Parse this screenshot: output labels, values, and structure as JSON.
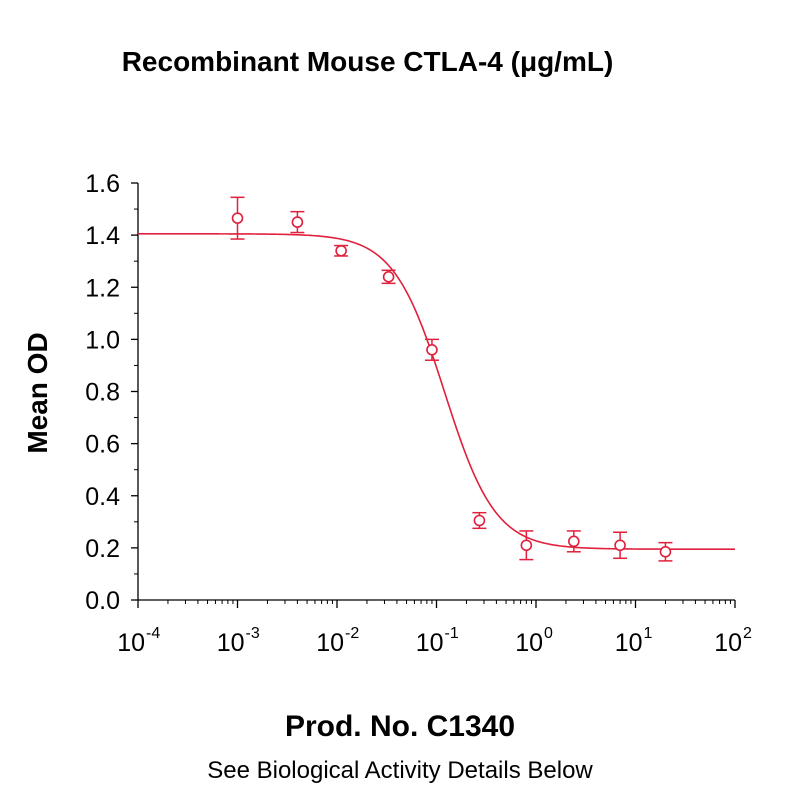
{
  "chart_data": {
    "type": "scatter",
    "title": "Recombinant Mouse CTLA-4 (μg/mL)",
    "xlabel": "",
    "ylabel": "Mean OD",
    "x_scale": "log10",
    "xlim": [
      0.0001,
      100
    ],
    "ylim": [
      0.0,
      1.6
    ],
    "x_tick_labels": [
      {
        "base": "10",
        "exp": "-4"
      },
      {
        "base": "10",
        "exp": "-3"
      },
      {
        "base": "10",
        "exp": "-2"
      },
      {
        "base": "10",
        "exp": "-1"
      },
      {
        "base": "10",
        "exp": "0"
      },
      {
        "base": "10",
        "exp": "1"
      },
      {
        "base": "10",
        "exp": "2"
      }
    ],
    "y_tick_labels": [
      "0.0",
      "0.2",
      "0.4",
      "0.6",
      "0.8",
      "1.0",
      "1.2",
      "1.4",
      "1.6"
    ],
    "grid": false,
    "color": "#e0203c",
    "points": [
      {
        "x": 0.001,
        "y": 1.465,
        "err": 0.08
      },
      {
        "x": 0.004,
        "y": 1.45,
        "err": 0.04
      },
      {
        "x": 0.011,
        "y": 1.34,
        "err": 0.02
      },
      {
        "x": 0.033,
        "y": 1.24,
        "err": 0.025
      },
      {
        "x": 0.09,
        "y": 0.96,
        "err": 0.04
      },
      {
        "x": 0.27,
        "y": 0.305,
        "err": 0.03
      },
      {
        "x": 0.8,
        "y": 0.21,
        "err": 0.055
      },
      {
        "x": 2.4,
        "y": 0.225,
        "err": 0.04
      },
      {
        "x": 7.0,
        "y": 0.21,
        "err": 0.05
      },
      {
        "x": 20.0,
        "y": 0.185,
        "err": 0.035
      }
    ],
    "fit": {
      "model": "4PL",
      "top": 1.405,
      "bottom": 0.195,
      "ec50": 0.12,
      "hill": 1.7
    }
  },
  "caption": "Prod. No. C1340",
  "subcaption": "See Biological Activity Details Below"
}
